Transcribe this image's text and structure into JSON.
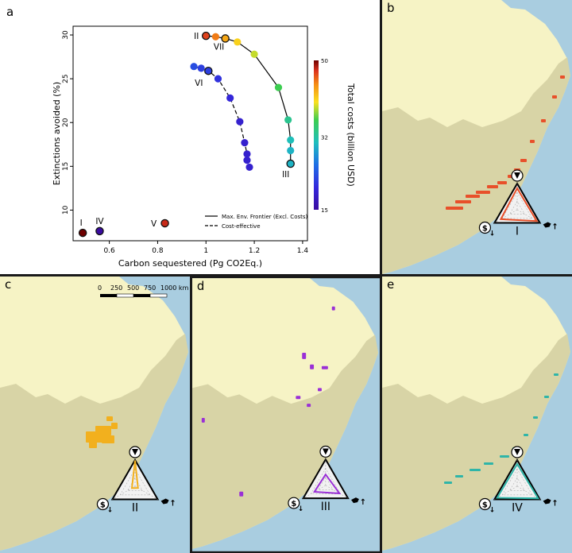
{
  "panels": {
    "a": {
      "letter": "a"
    },
    "b": {
      "letter": "b",
      "scenario": "I",
      "color": "#e8502a",
      "radar": [
        0.82,
        0.72,
        0.86
      ]
    },
    "c": {
      "letter": "c",
      "scenario": "II",
      "color": "#f2b01e",
      "radar": [
        0.98,
        0.14,
        0.13
      ]
    },
    "d": {
      "letter": "d",
      "scenario": "III",
      "color": "#9a2fd6",
      "radar": [
        0.42,
        0.5,
        0.62
      ]
    },
    "e": {
      "letter": "e",
      "scenario": "IV",
      "color": "#2fb5a8",
      "radar": [
        0.85,
        0.88,
        0.92
      ]
    }
  },
  "scale_bar": {
    "labels": [
      "0",
      "250",
      "500",
      "750",
      "1000 km"
    ]
  },
  "colors": {
    "ocean": "#a9cde0",
    "land": "#f6f3c5",
    "forest": "#d8d4a6",
    "panel_bg": "#ffffff"
  },
  "chart_data": {
    "type": "scatter",
    "xlabel": "Carbon sequestered (Pg CO2Eq.)",
    "ylabel": "Extinctions avoided (%)",
    "xlim": [
      0.45,
      1.42
    ],
    "ylim": [
      6.5,
      31
    ],
    "xticks": [
      0.6,
      0.8,
      1.0,
      1.2,
      1.4
    ],
    "yticks": [
      10,
      15,
      20,
      25,
      30
    ],
    "colorbar": {
      "label": "Total costs (billion USD)",
      "min": 15,
      "max": 50,
      "ticks": [
        15,
        32,
        50
      ]
    },
    "legend": {
      "position": "bottom-right",
      "entries": [
        {
          "label": "Max. Env. Frontier (Excl. Costs)",
          "style": "solid"
        },
        {
          "label": "Cost-effective",
          "style": "dashed"
        }
      ]
    },
    "series": [
      {
        "line": "solid",
        "points": [
          {
            "x": 1.0,
            "y": 29.9,
            "cost": 47
          },
          {
            "x": 1.04,
            "y": 29.8,
            "cost": 45
          },
          {
            "x": 1.08,
            "y": 29.6,
            "cost": 43
          },
          {
            "x": 1.13,
            "y": 29.2,
            "cost": 41
          },
          {
            "x": 1.2,
            "y": 27.8,
            "cost": 39
          },
          {
            "x": 1.3,
            "y": 24.0,
            "cost": 36
          },
          {
            "x": 1.34,
            "y": 20.3,
            "cost": 33
          },
          {
            "x": 1.35,
            "y": 18.0,
            "cost": 31
          },
          {
            "x": 1.35,
            "y": 16.8,
            "cost": 30
          },
          {
            "x": 1.35,
            "y": 15.3,
            "cost": 30
          }
        ]
      },
      {
        "line": "dashed",
        "points": [
          {
            "x": 0.95,
            "y": 26.4,
            "cost": 23
          },
          {
            "x": 0.98,
            "y": 26.2,
            "cost": 22
          },
          {
            "x": 1.01,
            "y": 25.9,
            "cost": 22
          },
          {
            "x": 1.05,
            "y": 25.0,
            "cost": 21
          },
          {
            "x": 1.1,
            "y": 22.8,
            "cost": 20
          },
          {
            "x": 1.14,
            "y": 20.1,
            "cost": 19
          },
          {
            "x": 1.16,
            "y": 17.7,
            "cost": 19
          },
          {
            "x": 1.17,
            "y": 16.4,
            "cost": 19
          },
          {
            "x": 1.17,
            "y": 15.7,
            "cost": 19
          },
          {
            "x": 1.18,
            "y": 14.9,
            "cost": 19
          }
        ]
      },
      {
        "line": "none",
        "points": [
          {
            "x": 0.49,
            "y": 7.4,
            "cost": 50
          },
          {
            "x": 0.56,
            "y": 7.6,
            "cost": 15
          },
          {
            "x": 0.83,
            "y": 8.5,
            "cost": 48
          }
        ]
      }
    ],
    "annotations": [
      {
        "text": "II",
        "x": 1.0,
        "y": 29.9
      },
      {
        "text": "VII",
        "x": 1.08,
        "y": 29.6
      },
      {
        "text": "VI",
        "x": 1.01,
        "y": 25.9
      },
      {
        "text": "III",
        "x": 1.35,
        "y": 15.3
      },
      {
        "text": "I",
        "x": 0.49,
        "y": 7.4
      },
      {
        "text": "IV",
        "x": 0.56,
        "y": 7.6
      },
      {
        "text": "V",
        "x": 0.83,
        "y": 8.5
      }
    ]
  }
}
